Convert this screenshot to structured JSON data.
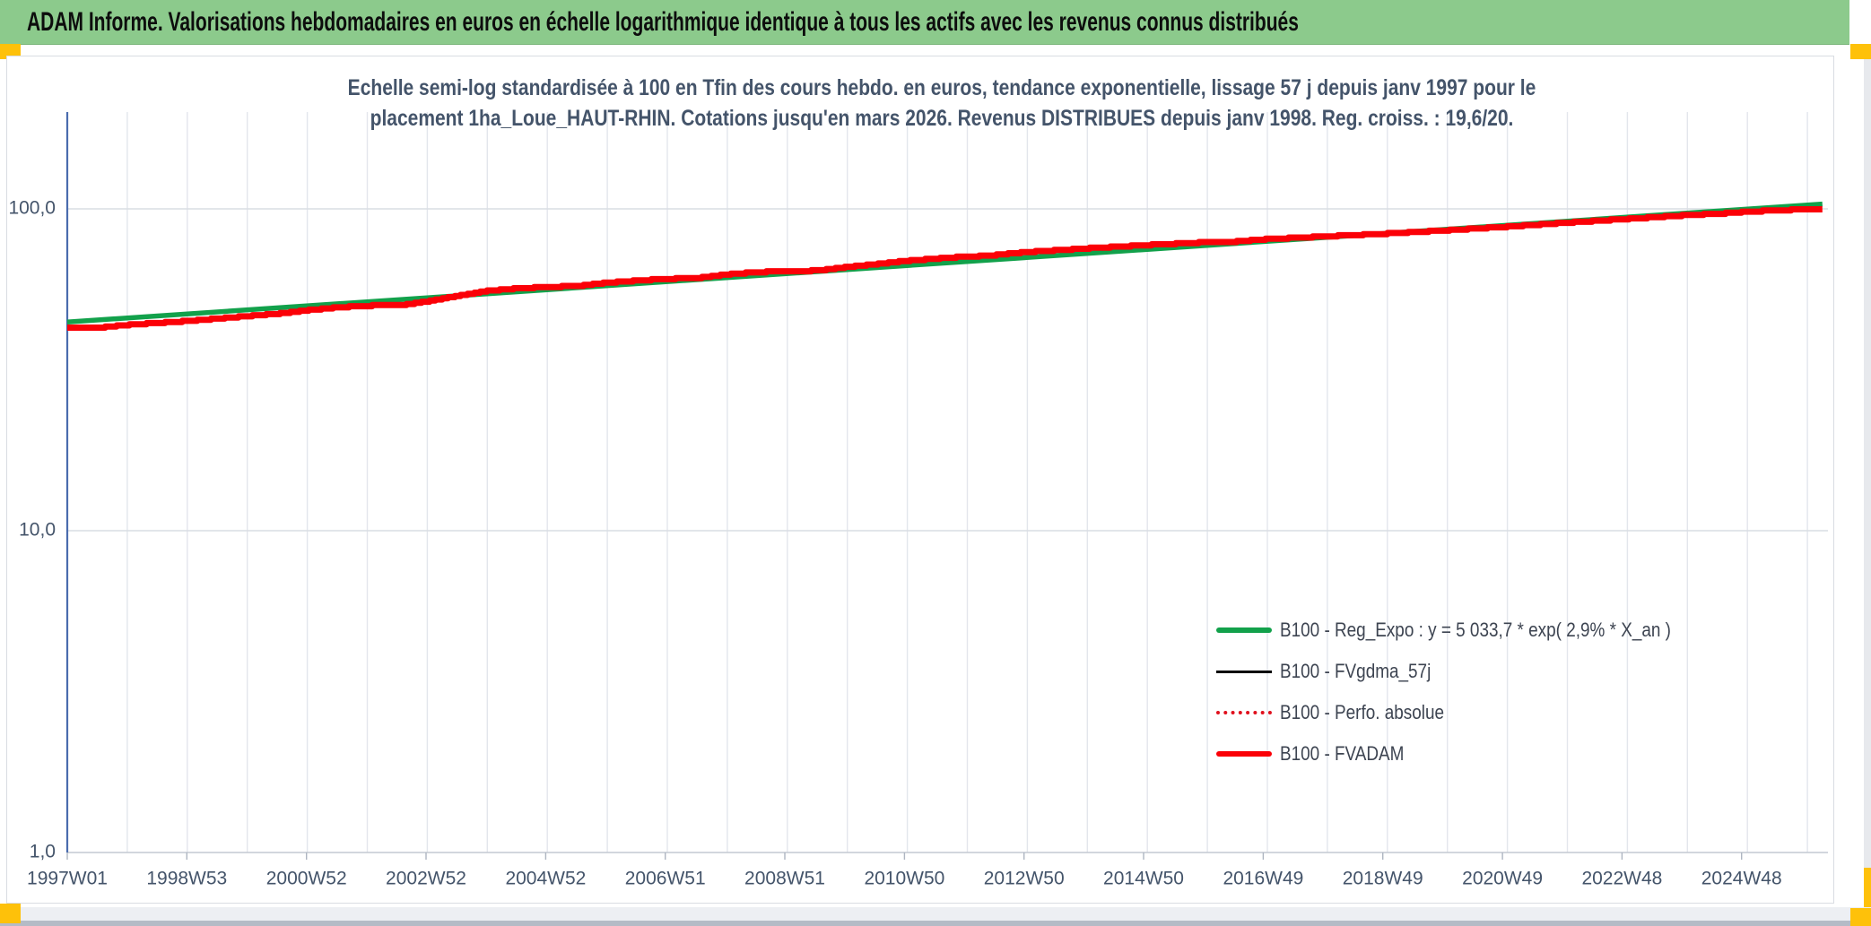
{
  "window": {
    "title": "ADAM Informe. Valorisations hebdomadaires en euros en échelle logarithmique identique à tous les actifs avec les revenus connus distribués"
  },
  "colors": {
    "title_bar_bg": "#8cca8c",
    "accent_orange": "#fec10a",
    "subtitle_text": "#44546a",
    "axis_text": "#44546a",
    "y_axis_line": "#4a6cae",
    "x_axis_line": "#c4c9d2",
    "gridline_minor": "#e3e6ec",
    "gridline_major": "#d9dde3",
    "green_series": "#12a14b",
    "red_series": "#fb0007",
    "black_series": "#000000",
    "dotted_red_series": "#e0101d",
    "legend_text": "#3d4451"
  },
  "chart": {
    "subtitle_line1": "Echelle semi-log standardisée à 100 en Tfin des cours hebdo. en euros, tendance exponentielle, lissage 57 j depuis janv 1997 pour le",
    "subtitle_line2": "placement 1ha_Loue_HAUT-RHIN. Cotations jusqu'en mars 2026. Revenus DISTRIBUES depuis janv 1998. Reg. croiss. : 19,6/20."
  },
  "chart_data": {
    "type": "line",
    "title": "Echelle semi-log standardisée à 100 en Tfin des cours hebdo. en euros, tendance exponentielle, lissage 57 j depuis janv 1997 pour le placement 1ha_Loue_HAUT-RHIN. Cotations jusqu'en mars 2026. Revenus DISTRIBUES depuis janv 1998. Reg. croiss. : 19,6/20.",
    "x_axis": {
      "scale": "time-weekly",
      "tick_labels": [
        "1997W01",
        "1998W53",
        "2000W52",
        "2002W52",
        "2004W52",
        "2006W51",
        "2008W51",
        "2010W50",
        "2012W50",
        "2014W50",
        "2016W49",
        "2018W49",
        "2020W49",
        "2022W48",
        "2024W48"
      ],
      "tick_interval_weeks": 104,
      "start_year": 1997.0,
      "end_year": 2026.25,
      "gridline_interval_years": 1
    },
    "y_axis": {
      "scale": "log10",
      "tick_labels": [
        "100,0",
        "10,0",
        "1,0"
      ],
      "tick_values": [
        100,
        10,
        1
      ],
      "range": [
        1,
        200
      ],
      "grid": true
    },
    "legend_position": "inside-right-lower",
    "series": [
      {
        "name": "B100 - Reg_Expo : y = 5 033,7 * exp( 2,9% *  X_an )",
        "type": "exponential_regression",
        "equation": "y = 5 033,7 * exp( 2,9% * X_an )",
        "growth_rate_per_year": 0.029,
        "color": "#12a14b",
        "stroke_width": 5.5,
        "b100_points": [
          [
            1997.0,
            44.5
          ],
          [
            2026.25,
            103.5
          ]
        ]
      },
      {
        "name": "B100 - FVgdma_57j",
        "type": "line",
        "color": "#000000",
        "stroke_width": 2,
        "coincident_with": "B100 - FVADAM"
      },
      {
        "name": "B100 - Perfo. absolue",
        "type": "line",
        "dash": "dotted",
        "color": "#e0101d",
        "stroke_width": 2,
        "coincident_with": "B100 - FVADAM"
      },
      {
        "name": "B100 - FVADAM",
        "type": "step_line",
        "color": "#fb0007",
        "stroke_width": 7,
        "anchors": [
          [
            1997.0,
            42.8
          ],
          [
            1997.6,
            42.9
          ],
          [
            1998.0,
            43.6
          ],
          [
            1999.0,
            44.8
          ],
          [
            2000.0,
            46.4
          ],
          [
            2000.6,
            47.4
          ],
          [
            2001.0,
            48.4
          ],
          [
            2001.5,
            49.4
          ],
          [
            2002.0,
            50.0
          ],
          [
            2002.6,
            50.3
          ],
          [
            2003.0,
            51.6
          ],
          [
            2003.5,
            53.6
          ],
          [
            2004.0,
            55.6
          ],
          [
            2004.5,
            56.6
          ],
          [
            2005.0,
            57.2
          ],
          [
            2005.5,
            57.6
          ],
          [
            2006.0,
            59.0
          ],
          [
            2006.5,
            59.9
          ],
          [
            2007.0,
            60.6
          ],
          [
            2007.5,
            61.0
          ],
          [
            2008.0,
            62.6
          ],
          [
            2008.5,
            63.6
          ],
          [
            2009.0,
            64.0
          ],
          [
            2009.5,
            64.3
          ],
          [
            2010.0,
            66.0
          ],
          [
            2010.5,
            67.4
          ],
          [
            2011.0,
            69.0
          ],
          [
            2011.5,
            70.1
          ],
          [
            2012.0,
            71.2
          ],
          [
            2012.3,
            71.4
          ],
          [
            2012.7,
            72.6
          ],
          [
            2013.0,
            73.4
          ],
          [
            2014.0,
            75.4
          ],
          [
            2015.0,
            77.2
          ],
          [
            2016.0,
            78.8
          ],
          [
            2016.4,
            79.0
          ],
          [
            2017.0,
            80.6
          ],
          [
            2018.0,
            82.2
          ],
          [
            2019.0,
            83.8
          ],
          [
            2020.0,
            85.8
          ],
          [
            2021.0,
            88.0
          ],
          [
            2022.0,
            90.6
          ],
          [
            2023.0,
            93.0
          ],
          [
            2024.0,
            95.6
          ],
          [
            2024.6,
            96.8
          ],
          [
            2025.0,
            98.0
          ],
          [
            2025.5,
            99.0
          ],
          [
            2026.0,
            99.6
          ],
          [
            2026.25,
            100.0
          ]
        ]
      }
    ]
  },
  "legend": {
    "entries": [
      {
        "label": "B100 - Reg_Expo : y = 5 033,7 * exp( 2,9% *  X_an )",
        "color": "#12a14b",
        "swatch": "thick"
      },
      {
        "label": "B100 - FVgdma_57j",
        "color": "#000000",
        "swatch": "thin"
      },
      {
        "label": "B100 - Perfo. absolue",
        "color": "#e0101d",
        "swatch": "dotted"
      },
      {
        "label": "B100 - FVADAM",
        "color": "#fb0007",
        "swatch": "thick"
      }
    ]
  }
}
